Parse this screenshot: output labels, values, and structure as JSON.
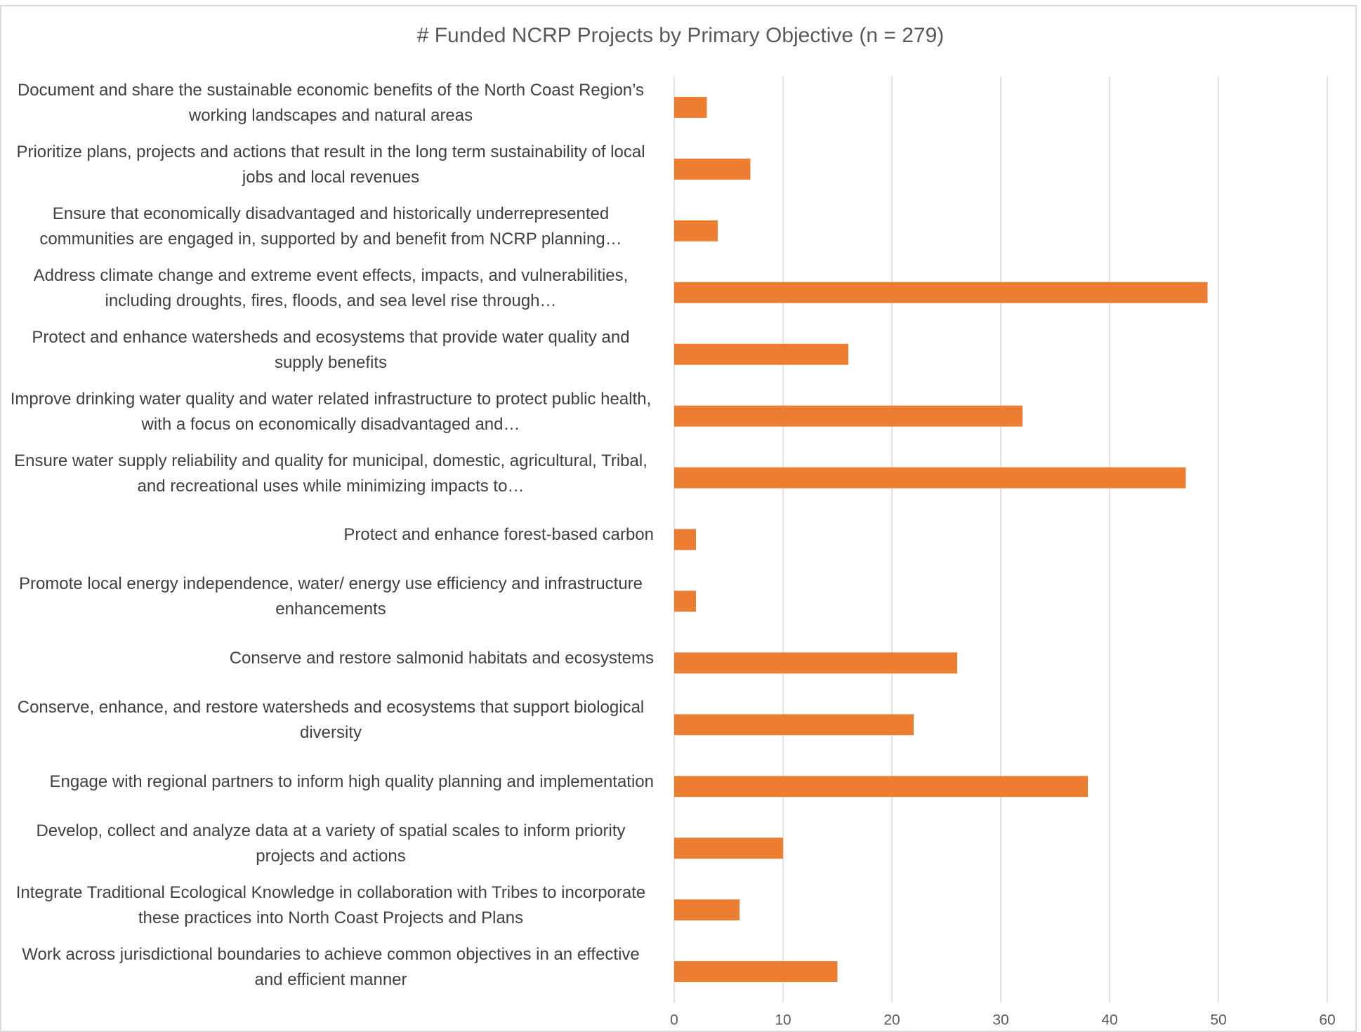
{
  "chart_data": {
    "type": "bar",
    "orientation": "horizontal",
    "title": "# Funded NCRP Projects by Primary Objective (n = 279)",
    "categories": [
      "Document and share the sustainable economic benefits of the North Coast Region’s working landscapes and natural areas",
      "Prioritize plans, projects and actions that result in the long term sustainability of local jobs and local revenues",
      "Ensure that economically disadvantaged and historically underrepresented communities are engaged in, supported by and benefit from NCRP planning…",
      "Address climate change and extreme event effects, impacts, and vulnerabilities, including droughts, fires, floods, and sea level rise through…",
      "Protect and enhance watersheds and ecosystems that provide water quality and supply benefits",
      "Improve drinking water quality and water related infrastructure to protect public health, with a focus on economically disadvantaged and…",
      "Ensure water supply reliability and quality for municipal, domestic, agricultural, Tribal, and recreational uses while minimizing impacts to…",
      "Protect and enhance forest-based carbon",
      "Promote local energy independence, water/ energy use efficiency and infrastructure enhancements",
      "Conserve and restore salmonid habitats and ecosystems",
      "Conserve, enhance, and restore watersheds and ecosystems that support biological diversity",
      "Engage with regional partners to inform high quality planning and implementation",
      "Develop, collect and analyze data at a variety of spatial scales to inform priority projects and actions",
      "Integrate Traditional Ecological Knowledge in collaboration with Tribes to incorporate these practices into North Coast Projects and Plans",
      "Work across jurisdictional boundaries to achieve common objectives in an effective and efficient manner"
    ],
    "values": [
      3,
      7,
      4,
      49,
      16,
      32,
      47,
      2,
      2,
      26,
      22,
      38,
      10,
      6,
      15
    ],
    "color": "#ed7d31",
    "xlim": [
      0,
      60
    ],
    "xticks": [
      0,
      10,
      20,
      30,
      40,
      50,
      60
    ],
    "grid": true
  }
}
